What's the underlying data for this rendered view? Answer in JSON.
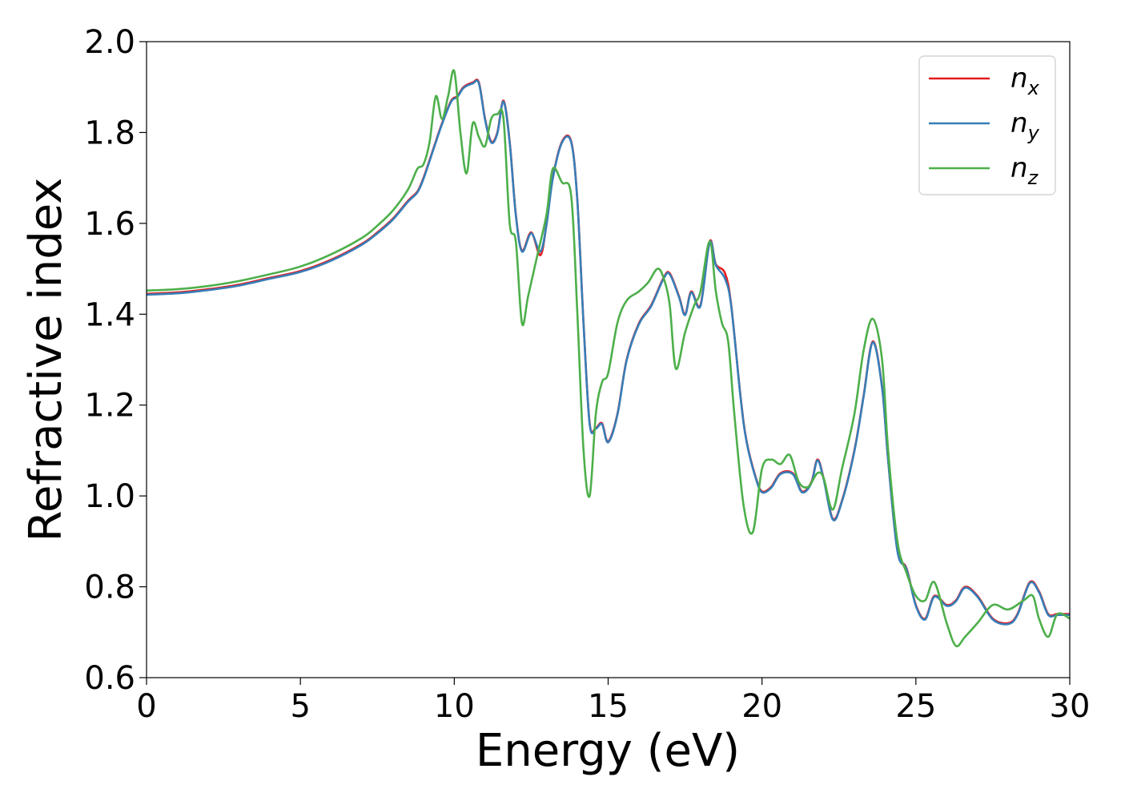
{
  "chart_data": {
    "type": "line",
    "title": "",
    "xlabel": "Energy (eV)",
    "ylabel": "Refractive index",
    "xlim": [
      0,
      30
    ],
    "ylim": [
      0.6,
      2.0
    ],
    "xticks": [
      "0",
      "5",
      "10",
      "15",
      "20",
      "25",
      "30"
    ],
    "yticks": [
      "0.6",
      "0.8",
      "1.0",
      "1.2",
      "1.4",
      "1.6",
      "1.8",
      "2.0"
    ],
    "grid": false,
    "legend_position": "top-right",
    "series": [
      {
        "name": "n_x",
        "label_base": "n",
        "label_sub": "x",
        "color": "#e41a1c",
        "x": [
          0,
          1,
          2,
          3,
          4,
          5,
          6,
          7,
          7.5,
          8,
          8.5,
          8.8,
          9.0,
          9.3,
          9.6,
          9.9,
          10.1,
          10.3,
          10.6,
          10.8,
          11.0,
          11.2,
          11.4,
          11.6,
          11.8,
          12.0,
          12.2,
          12.5,
          12.8,
          13.0,
          13.2,
          13.5,
          13.8,
          14.0,
          14.2,
          14.4,
          14.6,
          14.8,
          15.0,
          15.3,
          15.6,
          16.0,
          16.4,
          16.8,
          17.0,
          17.3,
          17.5,
          17.7,
          18.0,
          18.3,
          18.5,
          18.8,
          19.0,
          19.3,
          19.5,
          19.8,
          20.0,
          20.3,
          20.6,
          21.0,
          21.3,
          21.6,
          21.8,
          22.0,
          22.3,
          22.6,
          23.0,
          23.3,
          23.6,
          23.9,
          24.1,
          24.4,
          24.7,
          25.0,
          25.3,
          25.6,
          26.0,
          26.3,
          26.6,
          27.0,
          27.5,
          28.0,
          28.3,
          28.7,
          29.0,
          29.3,
          29.6,
          30.0
        ],
        "y": [
          1.445,
          1.448,
          1.455,
          1.465,
          1.48,
          1.495,
          1.52,
          1.555,
          1.58,
          1.61,
          1.65,
          1.67,
          1.7,
          1.76,
          1.82,
          1.87,
          1.88,
          1.9,
          1.91,
          1.91,
          1.83,
          1.78,
          1.8,
          1.87,
          1.78,
          1.62,
          1.54,
          1.58,
          1.53,
          1.6,
          1.7,
          1.78,
          1.78,
          1.65,
          1.38,
          1.16,
          1.15,
          1.16,
          1.12,
          1.18,
          1.3,
          1.38,
          1.42,
          1.48,
          1.49,
          1.44,
          1.4,
          1.45,
          1.42,
          1.56,
          1.51,
          1.49,
          1.42,
          1.22,
          1.12,
          1.04,
          1.01,
          1.02,
          1.05,
          1.05,
          1.01,
          1.03,
          1.08,
          1.04,
          0.95,
          0.99,
          1.1,
          1.22,
          1.34,
          1.24,
          1.08,
          0.88,
          0.84,
          0.76,
          0.73,
          0.78,
          0.76,
          0.77,
          0.8,
          0.78,
          0.73,
          0.72,
          0.74,
          0.81,
          0.79,
          0.74,
          0.74,
          0.74
        ]
      },
      {
        "name": "n_y",
        "label_base": "n",
        "label_sub": "y",
        "color": "#377eb8",
        "x": [
          0,
          1,
          2,
          3,
          4,
          5,
          6,
          7,
          7.5,
          8,
          8.5,
          8.8,
          9.0,
          9.3,
          9.6,
          9.9,
          10.1,
          10.3,
          10.6,
          10.8,
          11.0,
          11.2,
          11.4,
          11.6,
          11.8,
          12.0,
          12.2,
          12.5,
          12.8,
          13.0,
          13.2,
          13.5,
          13.8,
          14.0,
          14.2,
          14.4,
          14.6,
          14.8,
          15.0,
          15.3,
          15.6,
          16.0,
          16.4,
          16.8,
          17.0,
          17.3,
          17.5,
          17.7,
          18.0,
          18.3,
          18.5,
          18.8,
          19.0,
          19.3,
          19.5,
          19.8,
          20.0,
          20.3,
          20.6,
          21.0,
          21.3,
          21.6,
          21.8,
          22.0,
          22.3,
          22.6,
          23.0,
          23.3,
          23.6,
          23.9,
          24.1,
          24.4,
          24.7,
          25.0,
          25.3,
          25.6,
          26.0,
          26.3,
          26.6,
          27.0,
          27.5,
          28.0,
          28.3,
          28.7,
          29.0,
          29.3,
          29.6,
          30.0
        ],
        "y": [
          1.443,
          1.446,
          1.453,
          1.463,
          1.478,
          1.493,
          1.518,
          1.553,
          1.578,
          1.608,
          1.648,
          1.668,
          1.698,
          1.758,
          1.818,
          1.868,
          1.878,
          1.898,
          1.908,
          1.908,
          1.828,
          1.778,
          1.798,
          1.868,
          1.778,
          1.618,
          1.538,
          1.578,
          1.538,
          1.598,
          1.698,
          1.778,
          1.778,
          1.648,
          1.378,
          1.158,
          1.148,
          1.158,
          1.118,
          1.178,
          1.298,
          1.378,
          1.418,
          1.478,
          1.488,
          1.438,
          1.398,
          1.448,
          1.418,
          1.558,
          1.508,
          1.478,
          1.418,
          1.218,
          1.118,
          1.038,
          1.008,
          1.018,
          1.048,
          1.048,
          1.008,
          1.028,
          1.078,
          1.038,
          0.948,
          0.988,
          1.098,
          1.218,
          1.338,
          1.238,
          1.078,
          0.878,
          0.838,
          0.758,
          0.728,
          0.778,
          0.758,
          0.768,
          0.798,
          0.778,
          0.728,
          0.718,
          0.738,
          0.808,
          0.788,
          0.738,
          0.738,
          0.738
        ]
      },
      {
        "name": "n_z",
        "label_base": "n",
        "label_sub": "z",
        "color": "#4daf4a",
        "x": [
          0,
          1,
          2,
          3,
          4,
          5,
          6,
          7,
          7.5,
          8,
          8.5,
          8.8,
          9.0,
          9.2,
          9.4,
          9.6,
          9.8,
          10.0,
          10.2,
          10.4,
          10.6,
          10.8,
          11.0,
          11.2,
          11.4,
          11.6,
          11.8,
          12.0,
          12.2,
          12.4,
          12.7,
          13.0,
          13.2,
          13.5,
          13.8,
          14.0,
          14.2,
          14.4,
          14.6,
          14.8,
          15.0,
          15.3,
          15.6,
          16.0,
          16.3,
          16.6,
          16.8,
          17.0,
          17.2,
          17.5,
          17.8,
          18.0,
          18.3,
          18.5,
          18.7,
          18.9,
          19.1,
          19.4,
          19.7,
          20.0,
          20.3,
          20.6,
          20.9,
          21.2,
          21.5,
          21.8,
          22.0,
          22.3,
          22.6,
          23.0,
          23.3,
          23.6,
          23.9,
          24.1,
          24.4,
          24.7,
          25.0,
          25.3,
          25.6,
          26.0,
          26.3,
          26.6,
          27.0,
          27.5,
          28.0,
          28.5,
          28.8,
          29.0,
          29.3,
          29.6,
          30.0
        ],
        "y": [
          1.452,
          1.455,
          1.462,
          1.473,
          1.488,
          1.505,
          1.532,
          1.568,
          1.595,
          1.628,
          1.675,
          1.72,
          1.73,
          1.78,
          1.88,
          1.83,
          1.88,
          1.935,
          1.8,
          1.71,
          1.82,
          1.79,
          1.77,
          1.83,
          1.84,
          1.83,
          1.6,
          1.56,
          1.38,
          1.44,
          1.53,
          1.62,
          1.72,
          1.69,
          1.66,
          1.4,
          1.1,
          1.0,
          1.18,
          1.25,
          1.27,
          1.38,
          1.43,
          1.45,
          1.47,
          1.5,
          1.48,
          1.42,
          1.28,
          1.36,
          1.42,
          1.45,
          1.56,
          1.45,
          1.38,
          1.34,
          1.18,
          0.98,
          0.92,
          1.06,
          1.08,
          1.07,
          1.09,
          1.03,
          1.02,
          1.05,
          1.04,
          0.97,
          1.06,
          1.18,
          1.32,
          1.39,
          1.3,
          1.1,
          0.9,
          0.83,
          0.78,
          0.77,
          0.81,
          0.72,
          0.67,
          0.69,
          0.72,
          0.76,
          0.75,
          0.77,
          0.78,
          0.73,
          0.69,
          0.74,
          0.73
        ]
      }
    ]
  }
}
